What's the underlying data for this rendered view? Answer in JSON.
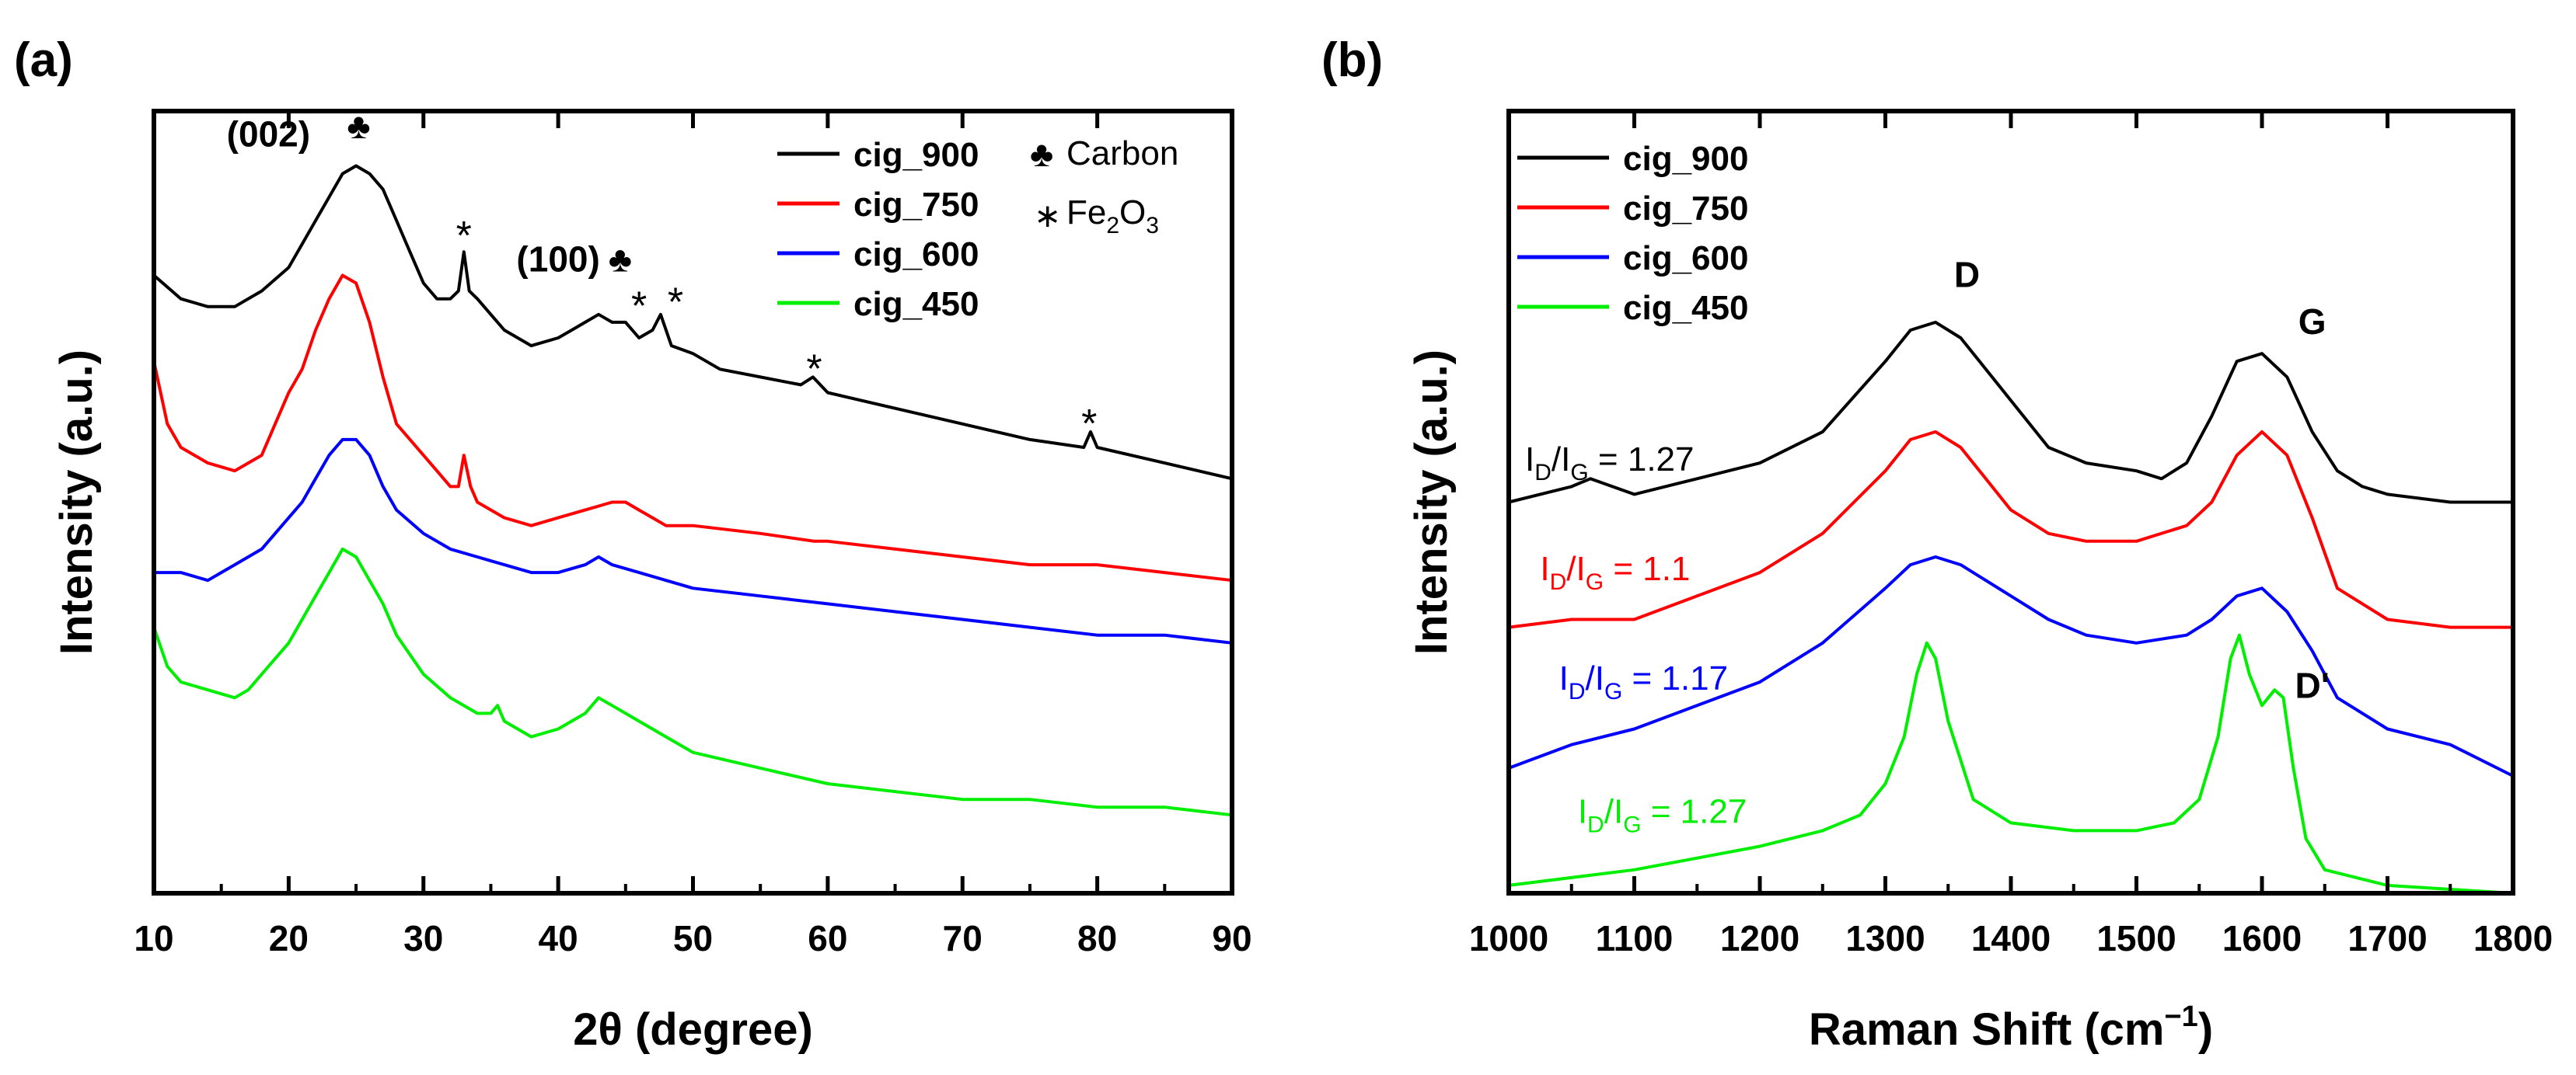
{
  "panels": {
    "a": {
      "label": "(a)"
    },
    "b": {
      "label": "(b)"
    }
  },
  "chart_data": [
    {
      "id": "xrd",
      "type": "line",
      "title": "",
      "xlabel": "2θ (degree)",
      "ylabel": "Intensity (a.u.)",
      "xlim": [
        10,
        90
      ],
      "ylim": [
        0,
        100
      ],
      "xticks": [
        10,
        20,
        30,
        40,
        50,
        60,
        70,
        80,
        90
      ],
      "yticks_shown": false,
      "legend_position": "top-right",
      "series": [
        {
          "name": "cig_900",
          "color": "#000000",
          "x": [
            10,
            12,
            14,
            16,
            18,
            20,
            21,
            22,
            23,
            24,
            25,
            26,
            27,
            28,
            29,
            30,
            31,
            32,
            32.6,
            33,
            33.4,
            34,
            35,
            36,
            38,
            40,
            41,
            42,
            43,
            44,
            45,
            46,
            47,
            47.6,
            48.4,
            50,
            52,
            55,
            58,
            58.9,
            60,
            65,
            70,
            75,
            79,
            79.5,
            80,
            85,
            90
          ],
          "y": [
            79,
            76,
            75,
            75,
            77,
            80,
            83,
            86,
            89,
            92,
            93,
            92,
            90,
            86,
            82,
            78,
            76,
            76,
            77,
            82,
            77,
            76,
            74,
            72,
            70,
            71,
            72,
            73,
            74,
            73,
            73,
            71,
            72,
            74,
            70,
            69,
            67,
            66,
            65,
            66,
            64,
            62,
            60,
            58,
            57,
            59,
            57,
            55,
            53
          ]
        },
        {
          "name": "cig_750",
          "color": "#ff0000",
          "x": [
            10,
            11,
            12,
            14,
            16,
            17,
            18,
            19,
            20,
            21,
            22,
            23,
            24,
            25,
            26,
            27,
            28,
            30,
            31,
            32,
            32.6,
            33,
            33.5,
            34,
            36,
            38,
            40,
            42,
            44,
            45,
            46,
            47,
            48,
            50,
            55,
            59,
            60,
            65,
            70,
            75,
            80,
            85,
            90
          ],
          "y": [
            68,
            60,
            57,
            55,
            54,
            55,
            56,
            60,
            64,
            67,
            72,
            76,
            79,
            78,
            73,
            66,
            60,
            56,
            54,
            52,
            52,
            56,
            52,
            50,
            48,
            47,
            48,
            49,
            50,
            50,
            49,
            48,
            47,
            47,
            46,
            45,
            45,
            44,
            43,
            42,
            42,
            41,
            40
          ]
        },
        {
          "name": "cig_600",
          "color": "#0000ff",
          "x": [
            10,
            12,
            14,
            15,
            16,
            18,
            20,
            21,
            22,
            23,
            24,
            25,
            26,
            27,
            28,
            30,
            32,
            34,
            36,
            38,
            40,
            42,
            43,
            44,
            46,
            48,
            50,
            55,
            60,
            65,
            70,
            75,
            80,
            85,
            90
          ],
          "y": [
            41,
            41,
            40,
            41,
            42,
            44,
            48,
            50,
            53,
            56,
            58,
            58,
            56,
            52,
            49,
            46,
            44,
            43,
            42,
            41,
            41,
            42,
            43,
            42,
            41,
            40,
            39,
            38,
            37,
            36,
            35,
            34,
            33,
            33,
            32
          ]
        },
        {
          "name": "cig_450",
          "color": "#00ee00",
          "x": [
            10,
            11,
            12,
            14,
            16,
            17,
            18,
            20,
            21,
            22,
            23,
            24,
            25,
            26,
            27,
            28,
            30,
            32,
            34,
            35,
            35.5,
            36,
            38,
            40,
            42,
            43,
            44,
            45,
            46,
            48,
            50,
            55,
            60,
            65,
            70,
            75,
            80,
            85,
            90
          ],
          "y": [
            34,
            29,
            27,
            26,
            25,
            26,
            28,
            32,
            35,
            38,
            41,
            44,
            43,
            40,
            37,
            33,
            28,
            25,
            23,
            23,
            24,
            22,
            20,
            21,
            23,
            25,
            24,
            23,
            22,
            20,
            18,
            16,
            14,
            13,
            12,
            12,
            11,
            11,
            10
          ]
        }
      ],
      "annotations": [
        {
          "text": "(002)",
          "x": 18.5,
          "y": 95.5,
          "bold": true
        },
        {
          "text": "♣",
          "x": 25.2,
          "y": 96.5,
          "bold": false
        },
        {
          "text": "*",
          "x": 33.0,
          "y": 84.5,
          "bold": false
        },
        {
          "text": "(100)",
          "x": 40.0,
          "y": 79.5,
          "bold": true
        },
        {
          "text": "♣",
          "x": 44.6,
          "y": 79.5,
          "bold": false
        },
        {
          "text": "*",
          "x": 46.0,
          "y": 75.5,
          "bold": false
        },
        {
          "text": "*",
          "x": 48.7,
          "y": 76.0,
          "bold": false
        },
        {
          "text": "*",
          "x": 59.0,
          "y": 67.5,
          "bold": false
        },
        {
          "text": "*",
          "x": 79.4,
          "y": 60.5,
          "bold": false
        }
      ],
      "marker_legend": [
        {
          "symbol": "♣",
          "label": "Carbon"
        },
        {
          "symbol": "∗",
          "label": "Fe",
          "sub1": "2",
          "mid": "O",
          "sub2": "3"
        }
      ]
    },
    {
      "id": "raman",
      "type": "line",
      "title": "",
      "xlabel": "Raman Shift (cm",
      "xlabel_sup": "−1",
      "xlabel_end": ")",
      "ylabel": "Intensity (a.u.)",
      "xlim": [
        1000,
        1800
      ],
      "ylim": [
        0,
        100
      ],
      "xticks": [
        1000,
        1100,
        1200,
        1300,
        1400,
        1500,
        1600,
        1700,
        1800
      ],
      "yticks_shown": false,
      "legend_position": "top-left",
      "series": [
        {
          "name": "cig_900",
          "color": "#000000",
          "x": [
            1000,
            1050,
            1065,
            1100,
            1150,
            1200,
            1250,
            1300,
            1320,
            1340,
            1360,
            1380,
            1400,
            1430,
            1460,
            1500,
            1520,
            1540,
            1560,
            1580,
            1600,
            1620,
            1640,
            1660,
            1680,
            1700,
            1750,
            1800
          ],
          "y": [
            50,
            52,
            53,
            51,
            53,
            55,
            59,
            68,
            72,
            73,
            71,
            67,
            63,
            57,
            55,
            54,
            53,
            55,
            61,
            68,
            69,
            66,
            59,
            54,
            52,
            51,
            50,
            50
          ]
        },
        {
          "name": "cig_750",
          "color": "#ff0000",
          "x": [
            1000,
            1050,
            1100,
            1150,
            1200,
            1250,
            1300,
            1320,
            1340,
            1360,
            1380,
            1400,
            1430,
            1460,
            1500,
            1540,
            1560,
            1580,
            1600,
            1620,
            1640,
            1660,
            1700,
            1750,
            1800
          ],
          "y": [
            34,
            35,
            35,
            38,
            41,
            46,
            54,
            58,
            59,
            57,
            53,
            49,
            46,
            45,
            45,
            47,
            50,
            56,
            59,
            56,
            48,
            39,
            35,
            34,
            34
          ]
        },
        {
          "name": "cig_600",
          "color": "#0000ff",
          "x": [
            1000,
            1050,
            1100,
            1150,
            1200,
            1250,
            1300,
            1320,
            1340,
            1360,
            1380,
            1400,
            1430,
            1460,
            1500,
            1540,
            1560,
            1580,
            1600,
            1620,
            1640,
            1660,
            1700,
            1750,
            1800
          ],
          "y": [
            16,
            19,
            21,
            24,
            27,
            32,
            39,
            42,
            43,
            42,
            40,
            38,
            35,
            33,
            32,
            33,
            35,
            38,
            39,
            36,
            31,
            25,
            21,
            19,
            15
          ]
        },
        {
          "name": "cig_450",
          "color": "#00ee00",
          "x": [
            1000,
            1100,
            1200,
            1250,
            1280,
            1300,
            1315,
            1325,
            1333,
            1340,
            1350,
            1370,
            1400,
            1450,
            1500,
            1530,
            1550,
            1565,
            1575,
            1582,
            1590,
            1600,
            1610,
            1617,
            1625,
            1635,
            1650,
            1700,
            1800
          ],
          "y": [
            1,
            3,
            6,
            8,
            10,
            14,
            20,
            28,
            32,
            30,
            22,
            12,
            9,
            8,
            8,
            9,
            12,
            20,
            30,
            33,
            28,
            24,
            26,
            25,
            16,
            7,
            3,
            1,
            0
          ]
        }
      ],
      "annotations": [
        {
          "text": "D",
          "x": 1365,
          "y": 77.5,
          "color": "#000000",
          "bold": true
        },
        {
          "text": "G",
          "x": 1640,
          "y": 71.5,
          "color": "#000000",
          "bold": true
        },
        {
          "text": "D'",
          "x": 1640,
          "y": 25.0,
          "color": "#000000",
          "bold": true
        }
      ],
      "ratio_labels": [
        {
          "value": " = 1.27",
          "x": 1013,
          "y": 54.0,
          "color": "#000000"
        },
        {
          "value": " = 1.1",
          "x": 1025,
          "y": 40.0,
          "color": "#ff0000"
        },
        {
          "value": " = 1.17",
          "x": 1040,
          "y": 26.0,
          "color": "#0000ff"
        },
        {
          "value": " = 1.27",
          "x": 1055,
          "y": 9.0,
          "color": "#00ee00"
        }
      ],
      "ratio_label_parts": {
        "i": "I",
        "d": "D",
        "slash": "/",
        "g": "G"
      }
    }
  ]
}
